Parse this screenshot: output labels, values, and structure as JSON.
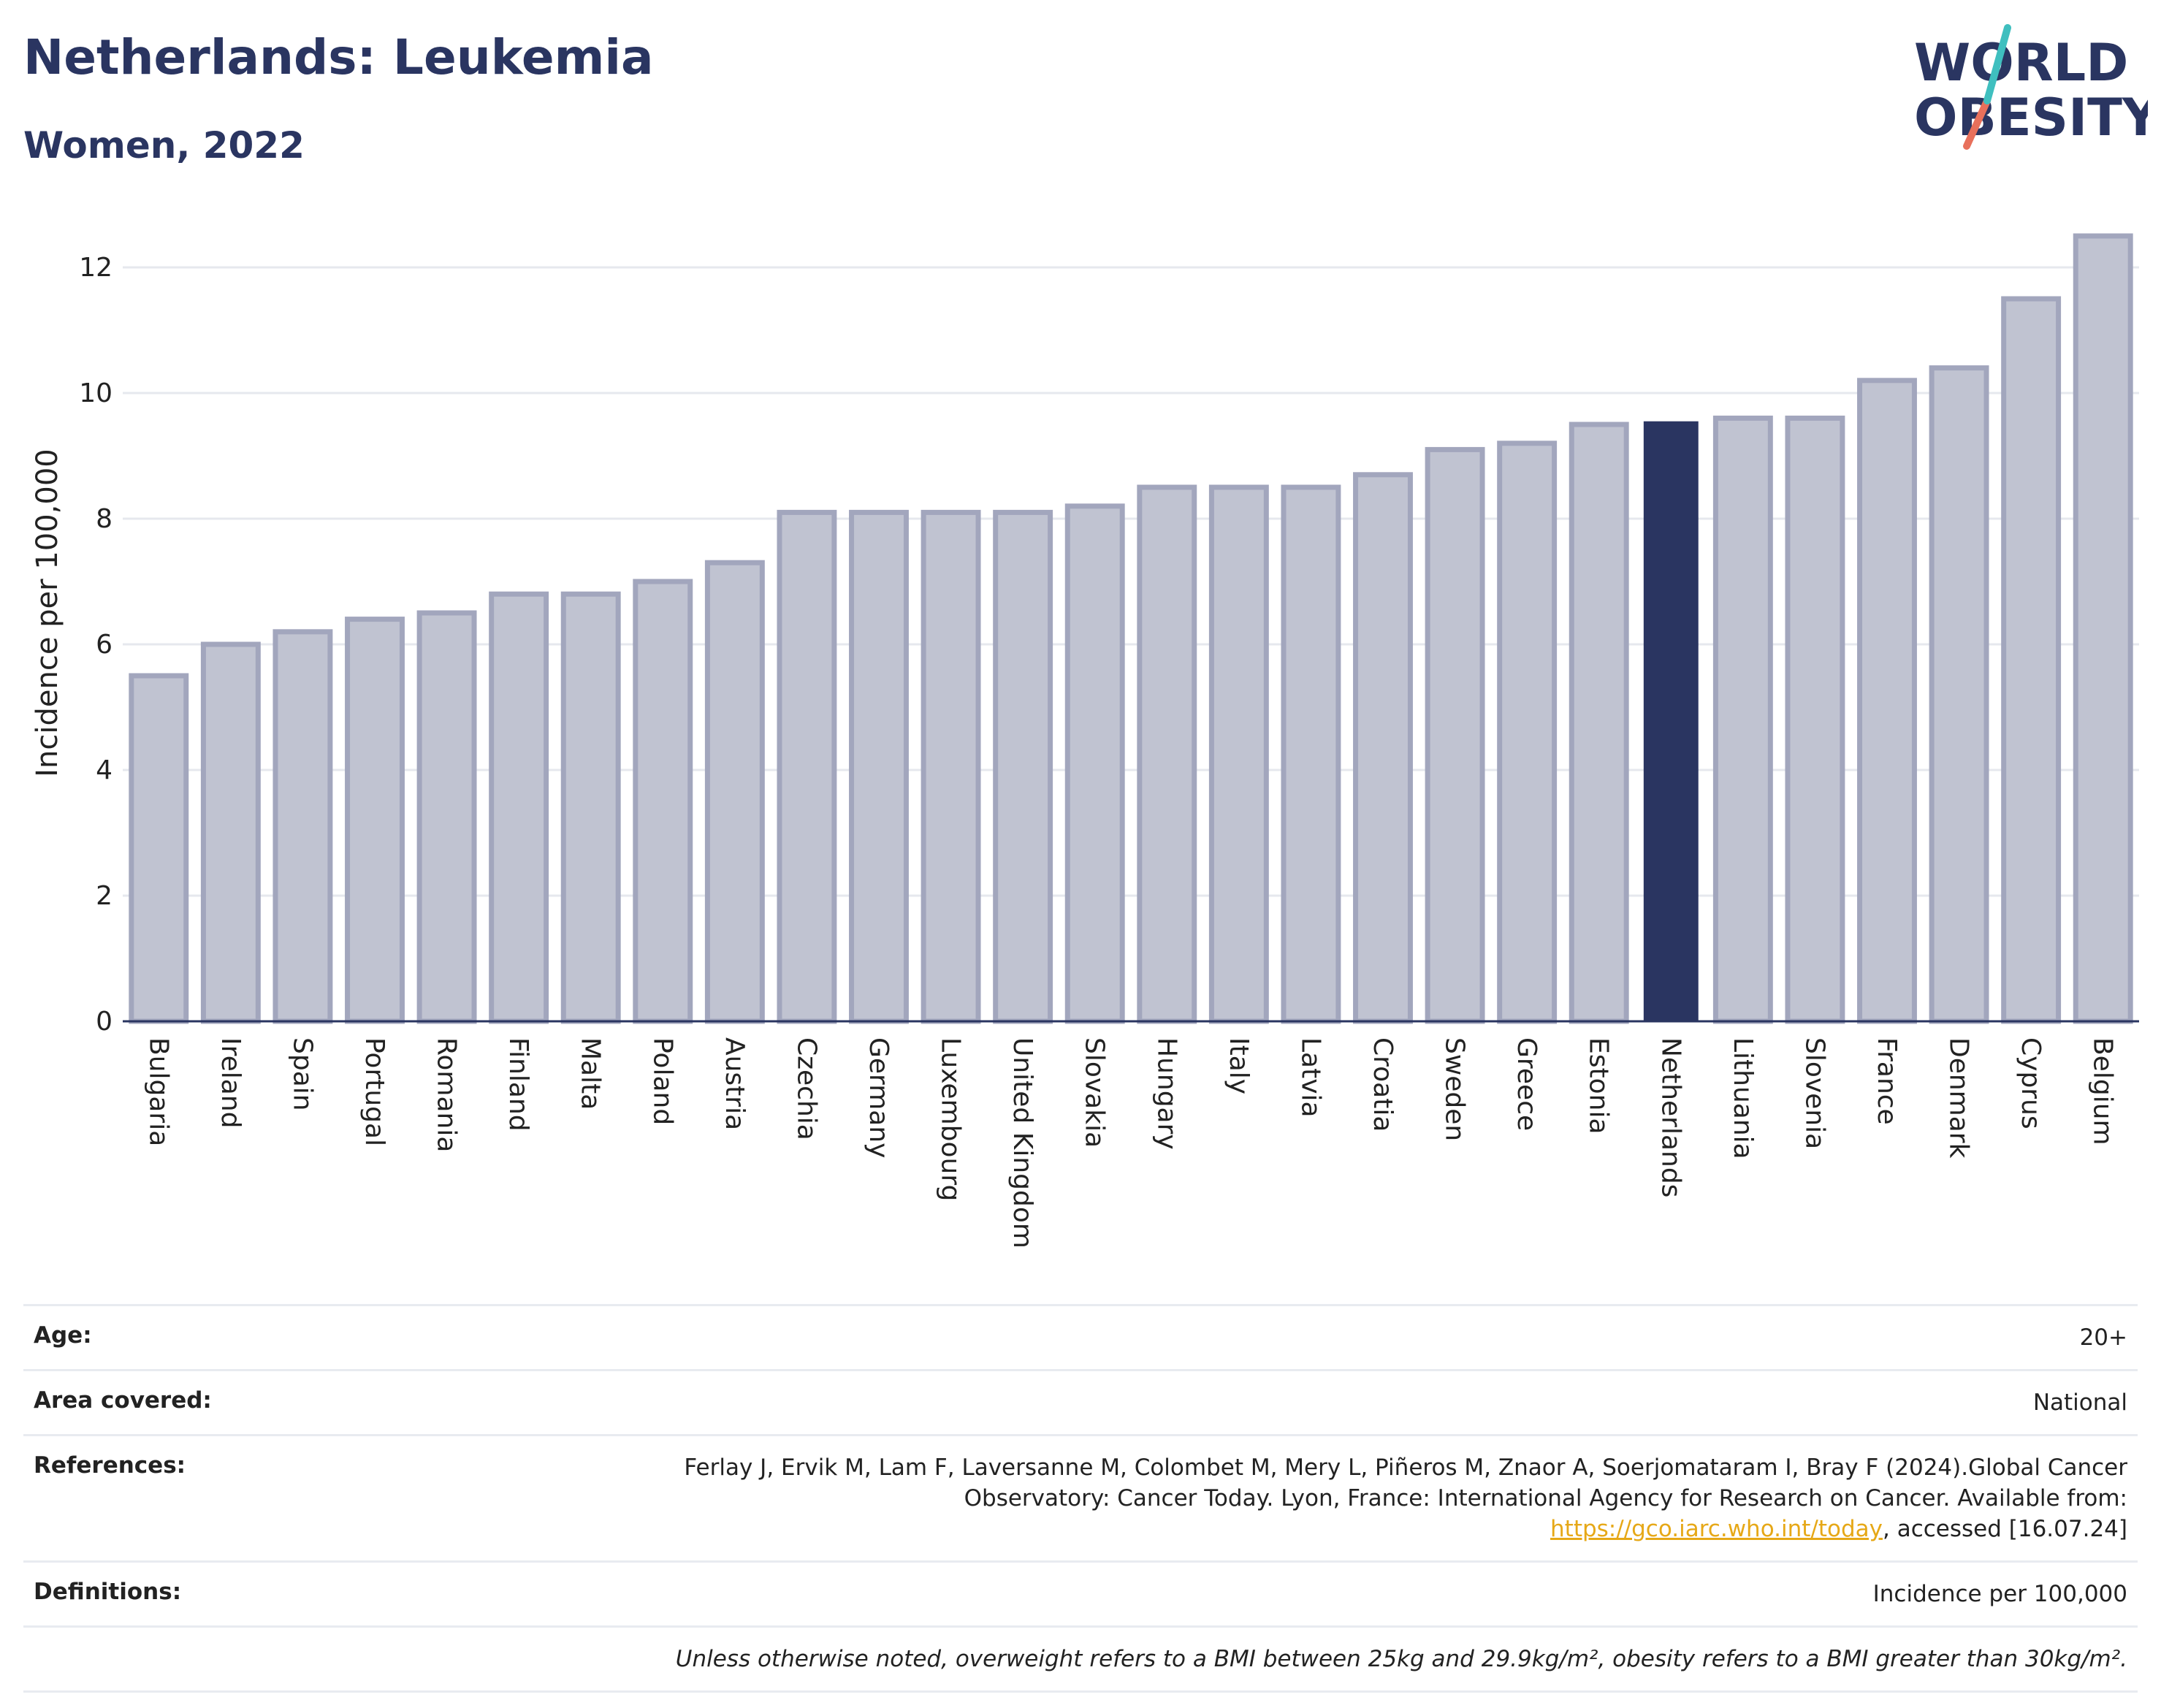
{
  "header": {
    "title": "Netherlands: Leukemia",
    "subtitle": "Women, 2022"
  },
  "logo": {
    "line1": "WORLD",
    "line2": "OBESITY",
    "colors": {
      "navy": "#2a3561",
      "teal": "#3fbfbf",
      "coral": "#e8705b"
    }
  },
  "chart_data": {
    "type": "bar",
    "ylabel": "Incidence per 100,000",
    "ylim": [
      0,
      13
    ],
    "yticks": [
      0,
      2,
      4,
      6,
      8,
      10,
      12
    ],
    "grid": true,
    "highlight": "Netherlands",
    "colors": {
      "bar": "#c0c3d1",
      "bar_edge": "#a2a6bd",
      "highlight": "#2a3561"
    },
    "categories": [
      "Bulgaria",
      "Ireland",
      "Spain",
      "Portugal",
      "Romania",
      "Finland",
      "Malta",
      "Poland",
      "Austria",
      "Czechia",
      "Germany",
      "Luxembourg",
      "United Kingdom",
      "Slovakia",
      "Hungary",
      "Italy",
      "Latvia",
      "Croatia",
      "Sweden",
      "Greece",
      "Estonia",
      "Netherlands",
      "Lithuania",
      "Slovenia",
      "France",
      "Denmark",
      "Cyprus",
      "Belgium"
    ],
    "values": [
      5.5,
      6.0,
      6.2,
      6.4,
      6.5,
      6.8,
      6.8,
      7.0,
      7.3,
      8.1,
      8.1,
      8.1,
      8.1,
      8.2,
      8.5,
      8.5,
      8.5,
      8.7,
      9.1,
      9.2,
      9.5,
      9.55,
      9.6,
      9.6,
      10.2,
      10.4,
      11.5,
      12.5
    ]
  },
  "meta": {
    "age_label": "Age:",
    "age_value": "20+",
    "area_label": "Area covered:",
    "area_value": "National",
    "references_label": "References:",
    "references_text_1": "Ferlay J, Ervik M, Lam F, Laversanne M, Colombet M, Mery L, Piñeros M, Znaor A, Soerjomataram I, Bray F (2024).Global Cancer Observatory: Cancer Today. Lyon, France: International Agency for Research on Cancer. Available from: ",
    "references_link": "https://gco.iarc.who.int/today",
    "references_text_2": ", accessed [16.07.24]",
    "definitions_label": "Definitions:",
    "definitions_value": "Incidence per 100,000",
    "note": "Unless otherwise noted, overweight refers to a BMI between 25kg and 29.9kg/m², obesity refers to a BMI greater than 30kg/m²."
  }
}
